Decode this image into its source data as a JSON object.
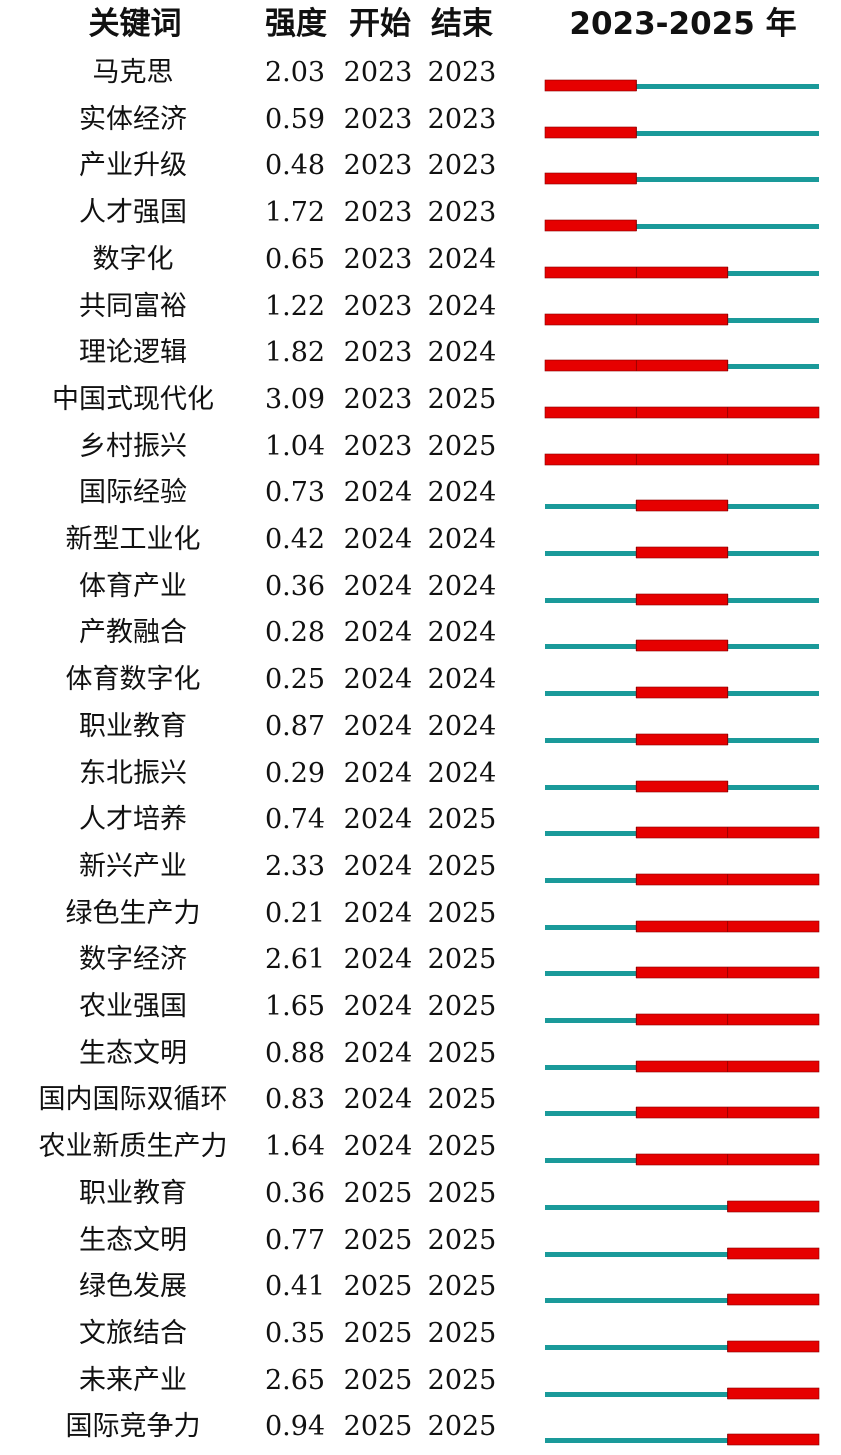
{
  "header": {
    "keyword": "关键词",
    "strength": "强度",
    "begin": "开始",
    "end": "结束",
    "timeline": "2023-2025 年"
  },
  "colors": {
    "burst": "#e60000",
    "base": "#1a9a9a",
    "burst_edge": "#8a0000"
  },
  "chart_data": {
    "type": "table",
    "timeline_years": [
      2023,
      2024,
      2025
    ],
    "columns": [
      "关键词",
      "强度",
      "开始",
      "结束"
    ],
    "rows": [
      {
        "keyword": "马克思",
        "strength": "2.03",
        "begin": "2023",
        "end": "2023"
      },
      {
        "keyword": "实体经济",
        "strength": "0.59",
        "begin": "2023",
        "end": "2023"
      },
      {
        "keyword": "产业升级",
        "strength": "0.48",
        "begin": "2023",
        "end": "2023"
      },
      {
        "keyword": "人才强国",
        "strength": "1.72",
        "begin": "2023",
        "end": "2023"
      },
      {
        "keyword": "数字化",
        "strength": "0.65",
        "begin": "2023",
        "end": "2024"
      },
      {
        "keyword": "共同富裕",
        "strength": "1.22",
        "begin": "2023",
        "end": "2024"
      },
      {
        "keyword": "理论逻辑",
        "strength": "1.82",
        "begin": "2023",
        "end": "2024"
      },
      {
        "keyword": "中国式现代化",
        "strength": "3.09",
        "begin": "2023",
        "end": "2025"
      },
      {
        "keyword": "乡村振兴",
        "strength": "1.04",
        "begin": "2023",
        "end": "2025"
      },
      {
        "keyword": "国际经验",
        "strength": "0.73",
        "begin": "2024",
        "end": "2024"
      },
      {
        "keyword": "新型工业化",
        "strength": "0.42",
        "begin": "2024",
        "end": "2024"
      },
      {
        "keyword": "体育产业",
        "strength": "0.36",
        "begin": "2024",
        "end": "2024"
      },
      {
        "keyword": "产教融合",
        "strength": "0.28",
        "begin": "2024",
        "end": "2024"
      },
      {
        "keyword": "体育数字化",
        "strength": "0.25",
        "begin": "2024",
        "end": "2024"
      },
      {
        "keyword": "职业教育",
        "strength": "0.87",
        "begin": "2024",
        "end": "2024"
      },
      {
        "keyword": "东北振兴",
        "strength": "0.29",
        "begin": "2024",
        "end": "2024"
      },
      {
        "keyword": "人才培养",
        "strength": "0.74",
        "begin": "2024",
        "end": "2025"
      },
      {
        "keyword": "新兴产业",
        "strength": "2.33",
        "begin": "2024",
        "end": "2025"
      },
      {
        "keyword": "绿色生产力",
        "strength": "0.21",
        "begin": "2024",
        "end": "2025"
      },
      {
        "keyword": "数字经济",
        "strength": "2.61",
        "begin": "2024",
        "end": "2025"
      },
      {
        "keyword": "农业强国",
        "strength": "1.65",
        "begin": "2024",
        "end": "2025"
      },
      {
        "keyword": "生态文明",
        "strength": "0.88",
        "begin": "2024",
        "end": "2025"
      },
      {
        "keyword": "国内国际双循环",
        "strength": "0.83",
        "begin": "2024",
        "end": "2025"
      },
      {
        "keyword": "农业新质生产力",
        "strength": "1.64",
        "begin": "2024",
        "end": "2025"
      },
      {
        "keyword": "职业教育",
        "strength": "0.36",
        "begin": "2025",
        "end": "2025"
      },
      {
        "keyword": "生态文明",
        "strength": "0.77",
        "begin": "2025",
        "end": "2025"
      },
      {
        "keyword": "绿色发展",
        "strength": "0.41",
        "begin": "2025",
        "end": "2025"
      },
      {
        "keyword": "文旅结合",
        "strength": "0.35",
        "begin": "2025",
        "end": "2025"
      },
      {
        "keyword": "未来产业",
        "strength": "2.65",
        "begin": "2025",
        "end": "2025"
      },
      {
        "keyword": "国际竞争力",
        "strength": "0.94",
        "begin": "2025",
        "end": "2025"
      }
    ]
  }
}
